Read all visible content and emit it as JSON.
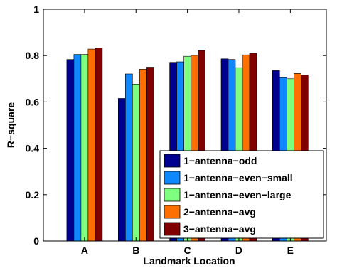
{
  "chart_data": {
    "type": "bar",
    "title": "",
    "xlabel": "Landmark Location",
    "ylabel": "R−square",
    "categories": [
      "A",
      "B",
      "C",
      "D",
      "E"
    ],
    "ylim": [
      0,
      1
    ],
    "yticks": [
      "0",
      "0.2",
      "0.4",
      "0.6",
      "0.8",
      "1"
    ],
    "ytick_values": [
      0,
      0.2,
      0.4,
      0.6,
      0.8,
      1.0
    ],
    "grid": false,
    "legend_position": "bottom-right",
    "series": [
      {
        "name": "1−antenna−odd",
        "color": "#00008f",
        "values": [
          0.783,
          0.615,
          0.771,
          0.786,
          0.735
        ]
      },
      {
        "name": "1−antenna−even−small",
        "color": "#0f87ff",
        "values": [
          0.805,
          0.721,
          0.773,
          0.783,
          0.705
        ]
      },
      {
        "name": "1−antenna−even−large",
        "color": "#7fff7f",
        "values": [
          0.805,
          0.677,
          0.797,
          0.748,
          0.7
        ]
      },
      {
        "name": "2−antenna−avg",
        "color": "#ff7000",
        "values": [
          0.828,
          0.741,
          0.801,
          0.803,
          0.723
        ]
      },
      {
        "name": "3−antenna−avg",
        "color": "#800000",
        "values": [
          0.833,
          0.75,
          0.822,
          0.81,
          0.717
        ]
      }
    ]
  }
}
